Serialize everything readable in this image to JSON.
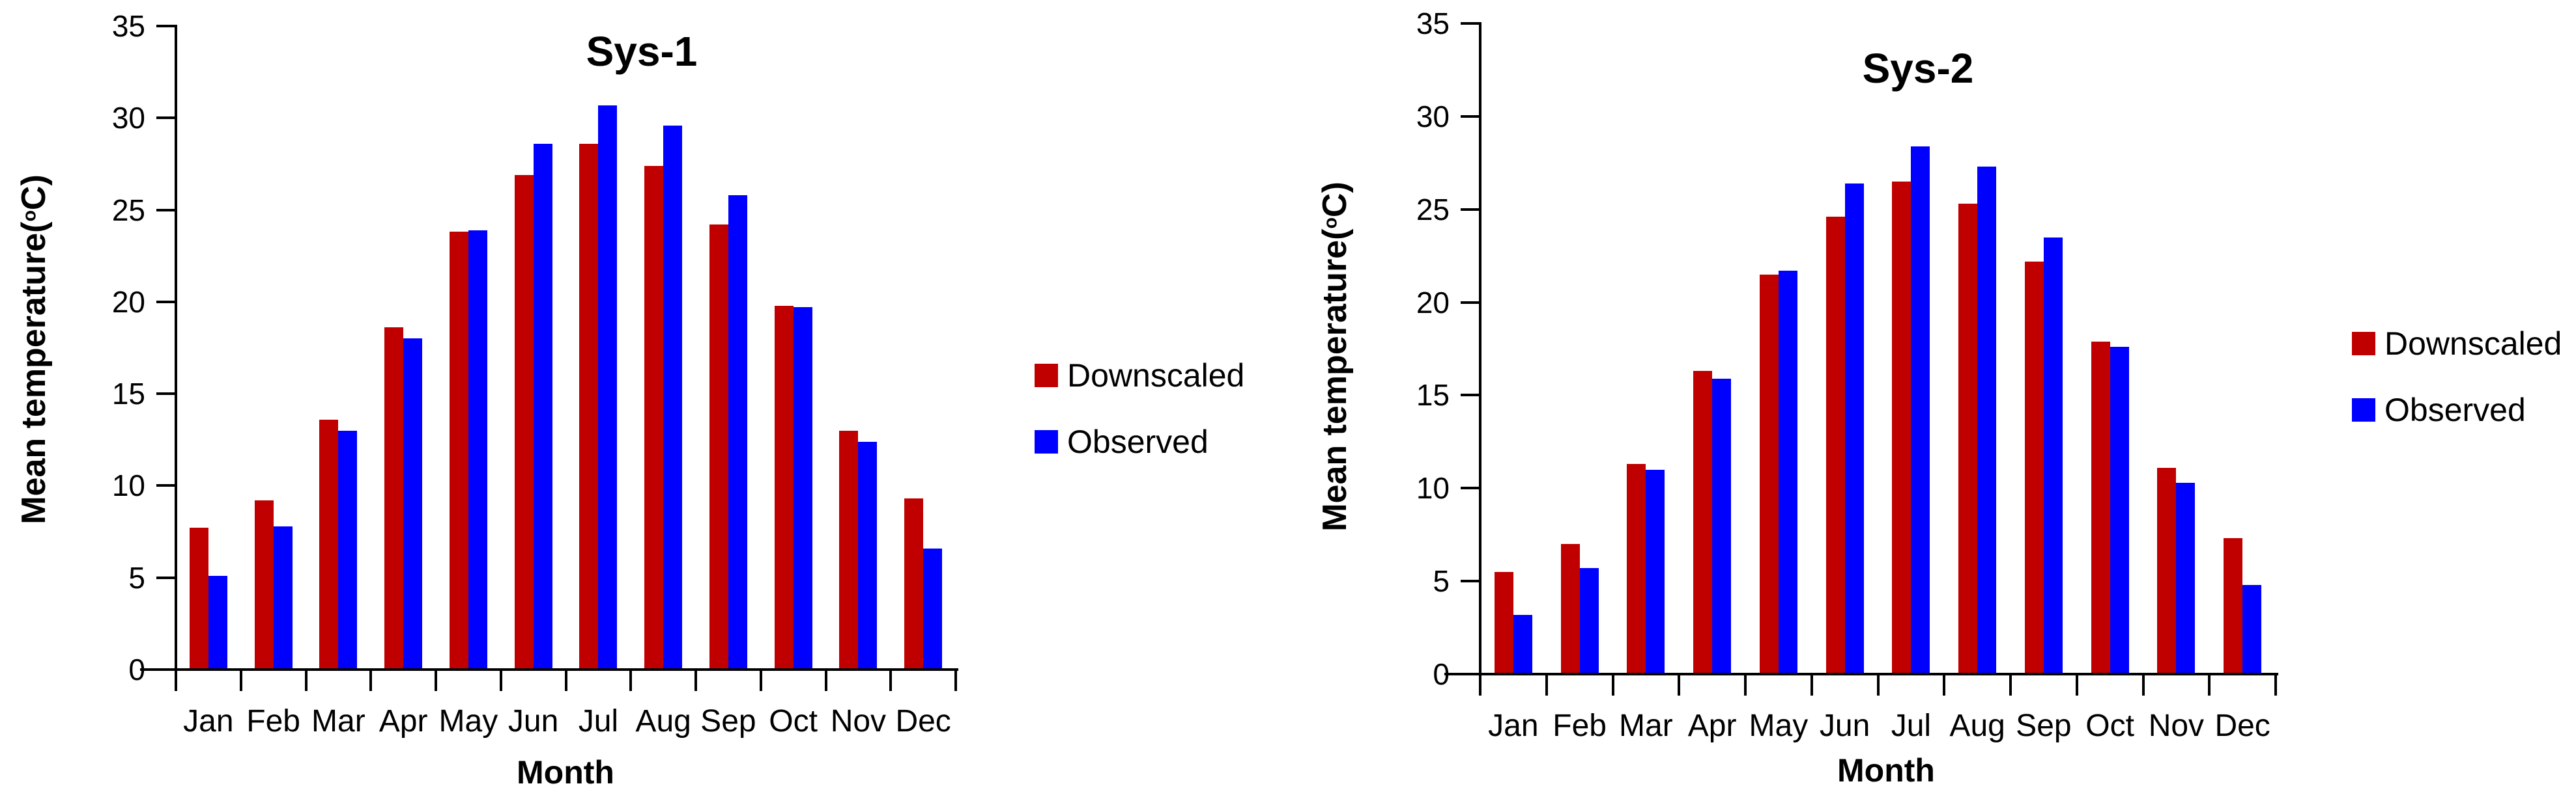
{
  "chart_data": [
    {
      "type": "bar",
      "title": "Sys-1",
      "xlabel": "Month",
      "ylabel_prefix": "Mean temperature(",
      "ylabel_sup": "o",
      "ylabel_suffix": "C)",
      "categories": [
        "Jan",
        "Feb",
        "Mar",
        "Apr",
        "May",
        "Jun",
        "Jul",
        "Aug",
        "Sep",
        "Oct",
        "Nov",
        "Dec"
      ],
      "series": [
        {
          "name": "Downscaled",
          "color": "#C00000",
          "values": [
            7.7,
            9.2,
            13.6,
            18.6,
            23.8,
            26.9,
            28.6,
            27.4,
            24.2,
            19.8,
            13.0,
            9.3
          ]
        },
        {
          "name": "Observed",
          "color": "#0000FF",
          "values": [
            5.1,
            7.8,
            13.0,
            18.0,
            23.9,
            28.6,
            30.7,
            29.6,
            25.8,
            19.7,
            12.4,
            6.6
          ]
        }
      ],
      "ylim": [
        0,
        35
      ],
      "yticks": [
        0,
        5,
        10,
        15,
        20,
        25,
        30,
        35
      ],
      "grid": false,
      "legend_position": "right"
    },
    {
      "type": "bar",
      "title": "Sys-2",
      "xlabel": "Month",
      "ylabel_prefix": "Mean temperature(",
      "ylabel_sup": "o",
      "ylabel_suffix": "C)",
      "categories": [
        "Jan",
        "Feb",
        "Mar",
        "Apr",
        "May",
        "Jun",
        "Jul",
        "Aug",
        "Sep",
        "Oct",
        "Nov",
        "Dec"
      ],
      "series": [
        {
          "name": "Downscaled",
          "color": "#C00000",
          "values": [
            5.5,
            7.0,
            11.3,
            16.3,
            21.5,
            24.6,
            26.5,
            25.3,
            22.2,
            17.9,
            11.1,
            7.3
          ]
        },
        {
          "name": "Observed",
          "color": "#0000FF",
          "values": [
            3.2,
            5.7,
            11.0,
            15.9,
            21.7,
            26.4,
            28.4,
            27.3,
            23.5,
            17.6,
            10.3,
            4.8
          ]
        }
      ],
      "ylim": [
        0,
        35
      ],
      "yticks": [
        0,
        5,
        10,
        15,
        20,
        25,
        30,
        35
      ],
      "grid": false,
      "legend_position": "right"
    }
  ]
}
